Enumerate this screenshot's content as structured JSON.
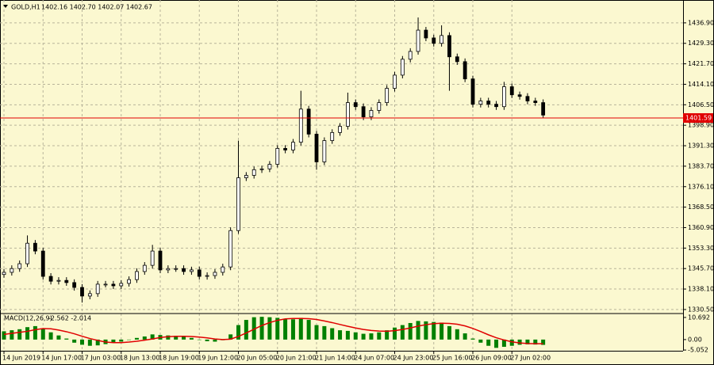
{
  "chart_data": [
    {
      "type": "candlestick",
      "title": "GOLD,H1",
      "readout": "1402.16 1402.70 1402.07 1402.67",
      "categories": [
        "14 Jun 2019",
        null,
        null,
        null,
        null,
        "14 Jun 17:00",
        null,
        null,
        null,
        null,
        "17 Jun 03:00",
        null,
        null,
        null,
        null,
        "18 Jun 13:00",
        null,
        null,
        null,
        null,
        "18 Jun 19:00",
        null,
        null,
        null,
        null,
        "19 Jun 12:00",
        null,
        null,
        null,
        null,
        "20 Jun 05:00",
        null,
        null,
        null,
        null,
        "20 Jun 21:00",
        null,
        null,
        null,
        null,
        "21 Jun 14:00",
        null,
        null,
        null,
        null,
        "24 Jun 07:00",
        null,
        null,
        null,
        null,
        "24 Jun 23:00",
        null,
        null,
        null,
        null,
        "25 Jun 16:00",
        null,
        null,
        null,
        null,
        "26 Jun 09:00",
        null,
        null,
        null,
        null,
        "27 Jun 02:00",
        null,
        null,
        null,
        null
      ],
      "open": [
        1343.5,
        1344.3,
        1345.7,
        1347.5,
        1355.1,
        1352.2,
        1342.8,
        1341.0,
        1341.3,
        1340.5,
        1338.7,
        1335.5,
        1336.4,
        1339.9,
        1339.9,
        1339.3,
        1340.2,
        1341.6,
        1344.6,
        1346.9,
        1352.2,
        1345.2,
        1345.7,
        1345.7,
        1344.6,
        1345.2,
        1342.8,
        1343.1,
        1344.3,
        1346.3,
        1359.8,
        1379.4,
        1380.3,
        1382.4,
        1382.7,
        1384.4,
        1390.3,
        1389.7,
        1392.6,
        1404.9,
        1395.6,
        1385.3,
        1393.2,
        1396.2,
        1398.5,
        1407.3,
        1405.8,
        1402.0,
        1404.4,
        1407.3,
        1412.6,
        1417.5,
        1423.4,
        1426.3,
        1434.2,
        1431.3,
        1429.3,
        1432.2,
        1424.3,
        1422.5,
        1416.1,
        1406.7,
        1407.9,
        1406.7,
        1405.8,
        1413.2,
        1410.2,
        1409.6,
        1407.9,
        1407.3
      ],
      "high": [
        1345.5,
        1346.9,
        1348.7,
        1358.0,
        1356.3,
        1353.4,
        1344.0,
        1342.5,
        1342.5,
        1341.7,
        1339.9,
        1337.6,
        1341.1,
        1341.1,
        1341.1,
        1341.4,
        1342.8,
        1345.8,
        1348.1,
        1354.5,
        1353.4,
        1346.9,
        1346.9,
        1346.9,
        1346.4,
        1346.4,
        1344.3,
        1345.5,
        1347.5,
        1361.0,
        1393.2,
        1381.5,
        1383.6,
        1383.9,
        1385.6,
        1391.5,
        1391.5,
        1393.8,
        1411.7,
        1406.1,
        1396.8,
        1394.4,
        1397.4,
        1399.7,
        1411.0,
        1408.5,
        1407.0,
        1405.6,
        1408.5,
        1413.8,
        1418.7,
        1424.6,
        1427.5,
        1438.9,
        1435.4,
        1432.5,
        1436.0,
        1433.4,
        1425.5,
        1423.7,
        1417.3,
        1409.1,
        1409.1,
        1407.9,
        1415.0,
        1414.4,
        1411.4,
        1410.8,
        1409.1,
        1408.5
      ],
      "low": [
        1342.3,
        1343.1,
        1344.5,
        1346.3,
        1351.0,
        1341.6,
        1339.8,
        1339.8,
        1339.3,
        1337.5,
        1333.1,
        1334.3,
        1335.2,
        1338.7,
        1338.1,
        1338.1,
        1339.0,
        1340.4,
        1343.4,
        1345.7,
        1344.0,
        1344.0,
        1344.5,
        1343.4,
        1343.4,
        1341.6,
        1341.6,
        1341.9,
        1343.1,
        1345.1,
        1358.6,
        1378.2,
        1379.1,
        1381.2,
        1381.5,
        1383.2,
        1388.5,
        1388.5,
        1391.4,
        1394.4,
        1382.4,
        1384.1,
        1392.0,
        1395.0,
        1397.3,
        1404.6,
        1400.8,
        1400.8,
        1403.2,
        1406.1,
        1411.4,
        1416.3,
        1422.2,
        1425.1,
        1430.1,
        1428.1,
        1428.1,
        1411.7,
        1421.3,
        1414.9,
        1405.5,
        1405.5,
        1405.5,
        1404.6,
        1404.6,
        1409.0,
        1408.4,
        1406.7,
        1406.1,
        1401.5
      ],
      "close": [
        1344.3,
        1345.7,
        1347.5,
        1355.1,
        1352.2,
        1342.8,
        1341.0,
        1341.3,
        1340.5,
        1338.7,
        1335.5,
        1336.4,
        1339.9,
        1339.9,
        1339.3,
        1340.2,
        1341.6,
        1344.6,
        1346.9,
        1352.2,
        1345.2,
        1345.7,
        1345.7,
        1344.6,
        1345.2,
        1342.8,
        1343.1,
        1344.3,
        1346.3,
        1359.8,
        1379.4,
        1380.3,
        1382.4,
        1382.7,
        1384.4,
        1390.3,
        1389.7,
        1392.6,
        1404.9,
        1395.6,
        1385.3,
        1393.2,
        1396.2,
        1398.5,
        1407.3,
        1405.8,
        1402.0,
        1404.4,
        1407.3,
        1412.6,
        1417.5,
        1423.4,
        1426.3,
        1434.2,
        1431.3,
        1429.3,
        1432.2,
        1424.3,
        1422.5,
        1416.1,
        1406.7,
        1407.9,
        1406.7,
        1405.8,
        1413.2,
        1410.2,
        1409.6,
        1407.9,
        1407.3,
        1402.67
      ],
      "color": "#000000",
      "ylim": [
        1329.3,
        1444.8
      ],
      "yticks": [
        {
          "value": 1436.9,
          "label": "1436.90"
        },
        {
          "value": 1429.3,
          "label": "1429.30"
        },
        {
          "value": 1421.7,
          "label": "1421.70"
        },
        {
          "value": 1414.1,
          "label": "1414.10"
        },
        {
          "value": 1406.5,
          "label": "1406.50"
        },
        {
          "value": 1398.9,
          "label": "1398.90"
        },
        {
          "value": 1391.3,
          "label": "1391.30"
        },
        {
          "value": 1383.7,
          "label": "1383.70"
        },
        {
          "value": 1376.1,
          "label": "1376.10"
        },
        {
          "value": 1368.5,
          "label": "1368.50"
        },
        {
          "value": 1360.9,
          "label": "1360.90"
        },
        {
          "value": 1353.3,
          "label": "1353.30"
        },
        {
          "value": 1345.7,
          "label": "1345.70"
        },
        {
          "value": 1338.1,
          "label": "1338.10"
        },
        {
          "value": 1330.5,
          "label": "1330.50"
        }
      ],
      "price_line": 1401.59,
      "price_line_color": "#e00000",
      "grid": true
    },
    {
      "type": "macd",
      "title": "MACD(12,26,9)",
      "readout": "-2.562 -2.014",
      "values": [
        4,
        4.5,
        5,
        6,
        6.5,
        5.5,
        3.5,
        2,
        0.5,
        -1.5,
        -2.5,
        -3,
        -2.8,
        -2.2,
        -1.5,
        -1,
        0,
        0.8,
        1.5,
        2.5,
        2.2,
        2,
        1.8,
        1.4,
        0.8,
        0,
        -0.8,
        -1,
        -0.3,
        2.5,
        7,
        9.5,
        10.8,
        11,
        10.8,
        10.5,
        9.8,
        9.8,
        10.5,
        9.5,
        7,
        6.5,
        5.5,
        4.5,
        4.2,
        3.5,
        2.8,
        3,
        3.5,
        4.5,
        5.8,
        7,
        8,
        9,
        8.8,
        8.5,
        8.2,
        6.5,
        5,
        3,
        0.5,
        -1.5,
        -3,
        -4,
        -3.5,
        -3,
        -2.5,
        -2.3,
        -2.4,
        -2.562
      ],
      "color": "#008000",
      "signal": [
        2.5,
        3,
        3.5,
        4,
        4.8,
        5.3,
        5.2,
        4.6,
        3.8,
        2.8,
        1.6,
        0.5,
        -0.4,
        -1.2,
        -1.5,
        -1.5,
        -1.2,
        -0.8,
        -0.3,
        0.3,
        1,
        1.4,
        1.6,
        1.6,
        1.5,
        1.2,
        0.8,
        0.3,
        0,
        0.2,
        1.5,
        3.2,
        5,
        6.8,
        8.2,
        9.3,
        10,
        10.2,
        10.2,
        10.1,
        9.7,
        9,
        8.2,
        7.3,
        6.4,
        5.6,
        4.9,
        4.4,
        4.1,
        4,
        4.3,
        4.9,
        5.6,
        6.5,
        7.2,
        7.7,
        7.9,
        7.8,
        7.4,
        6.6,
        5.4,
        3.9,
        2.3,
        0.9,
        -0.2,
        -1.1,
        -1.6,
        -1.9,
        -2,
        -2.014
      ],
      "signal_color": "#e00000",
      "ylim": [
        -5.4,
        12.2
      ],
      "yticks": [
        10.692,
        {
          "value": 0,
          "label": "0.00"
        },
        -5.052
      ]
    }
  ]
}
